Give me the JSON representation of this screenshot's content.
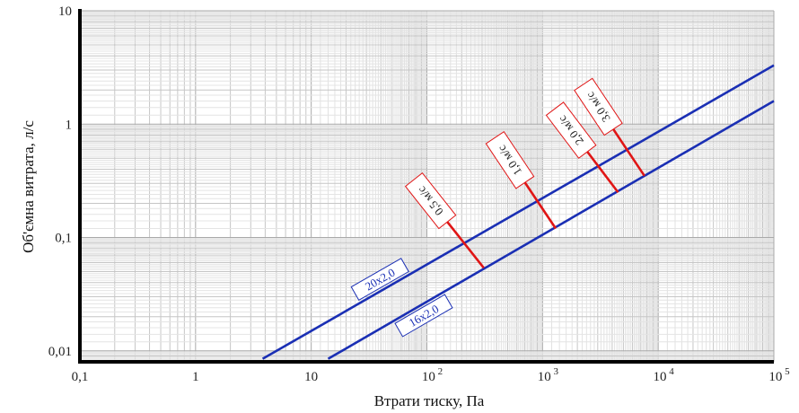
{
  "chart_data": {
    "type": "line",
    "title": "",
    "xlabel": "Втрати тиску, Па",
    "ylabel": "Об'ємна витрата, л/с",
    "xscale": "log",
    "yscale": "log",
    "xlim": [
      0.1,
      100000
    ],
    "ylim": [
      0.008,
      10
    ],
    "grid": true,
    "x_ticks": [
      {
        "value": 0.1,
        "label": "0,1"
      },
      {
        "value": 1,
        "label": "1"
      },
      {
        "value": 10,
        "label": "10"
      },
      {
        "value": 100,
        "label": "10",
        "exp": "2"
      },
      {
        "value": 1000,
        "label": "10",
        "exp": "3"
      },
      {
        "value": 10000,
        "label": "10",
        "exp": "4"
      },
      {
        "value": 100000,
        "label": "10",
        "exp": "5"
      }
    ],
    "y_ticks": [
      {
        "value": 0.01,
        "label": "0,01"
      },
      {
        "value": 0.1,
        "label": "0,1"
      },
      {
        "value": 1,
        "label": "1"
      },
      {
        "value": 10,
        "label": "10"
      }
    ],
    "series": [
      {
        "name": "20x2,0",
        "color": "#1a2fb4",
        "x": [
          3.8,
          100000
        ],
        "y": [
          0.0085,
          3.3
        ]
      },
      {
        "name": "16x2,0",
        "color": "#1a2fb4",
        "x": [
          14,
          100000
        ],
        "y": [
          0.0085,
          1.6
        ]
      }
    ],
    "velocity_markers": [
      {
        "label": "0,5 м/с",
        "color": "#e01515",
        "points": [
          {
            "x": 205,
            "y": 0.092
          },
          {
            "x": 310,
            "y": 0.054
          }
        ]
      },
      {
        "label": "1,0 м/с",
        "color": "#e01515",
        "points": [
          {
            "x": 930,
            "y": 0.2
          },
          {
            "x": 1300,
            "y": 0.12
          }
        ]
      },
      {
        "label": "2,0 м/с",
        "color": "#e01515",
        "points": [
          {
            "x": 3300,
            "y": 0.38
          },
          {
            "x": 4500,
            "y": 0.25
          }
        ]
      },
      {
        "label": "3,0 м/с",
        "color": "#e01515",
        "points": [
          {
            "x": 5400,
            "y": 0.59
          },
          {
            "x": 7600,
            "y": 0.35
          }
        ]
      }
    ]
  }
}
